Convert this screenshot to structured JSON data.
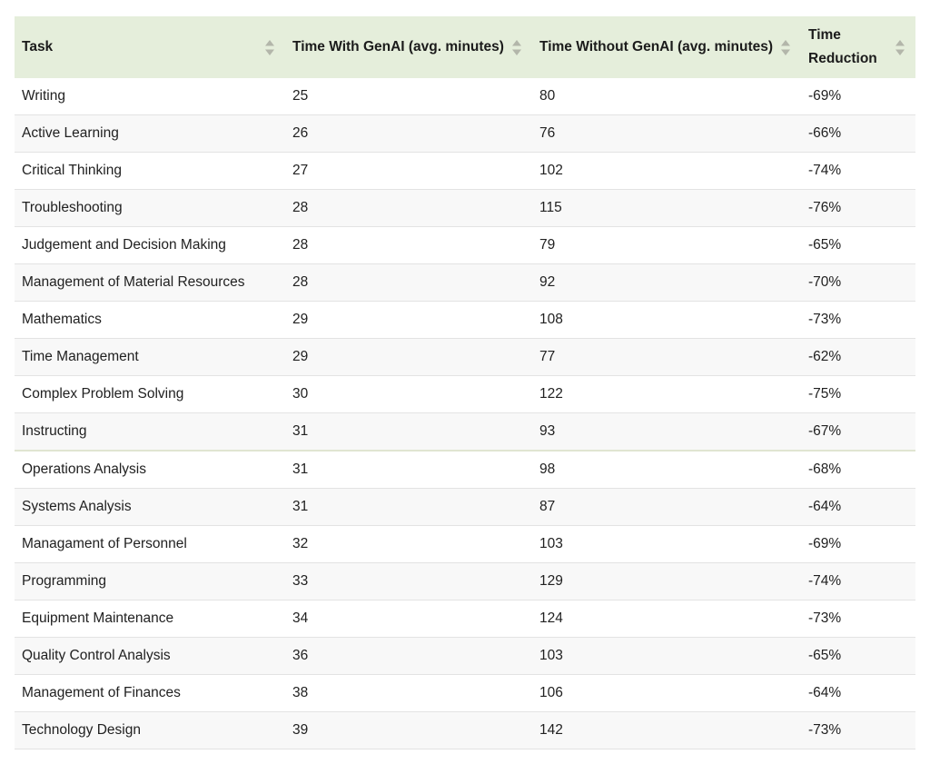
{
  "table": {
    "columns": [
      {
        "label": "Task",
        "sortable": true
      },
      {
        "label": "Time With GenAI (avg. minutes)",
        "sortable": true
      },
      {
        "label": "Time Without GenAI (avg. minutes)",
        "sortable": true
      },
      {
        "label": "Time Reduction",
        "sortable": true
      }
    ],
    "rows": [
      {
        "task": "Writing",
        "with_genai": "25",
        "without_genai": "80",
        "reduction": "-69%"
      },
      {
        "task": "Active Learning",
        "with_genai": "26",
        "without_genai": "76",
        "reduction": "-66%"
      },
      {
        "task": "Critical Thinking",
        "with_genai": "27",
        "without_genai": "102",
        "reduction": "-74%"
      },
      {
        "task": "Troubleshooting",
        "with_genai": "28",
        "without_genai": "115",
        "reduction": "-76%"
      },
      {
        "task": "Judgement and Decision Making",
        "with_genai": "28",
        "without_genai": "79",
        "reduction": "-65%"
      },
      {
        "task": "Management of Material Resources",
        "with_genai": "28",
        "without_genai": "92",
        "reduction": "-70%"
      },
      {
        "task": "Mathematics",
        "with_genai": "29",
        "without_genai": "108",
        "reduction": "-73%"
      },
      {
        "task": "Time Management",
        "with_genai": "29",
        "without_genai": "77",
        "reduction": "-62%"
      },
      {
        "task": "Complex Problem Solving",
        "with_genai": "30",
        "without_genai": "122",
        "reduction": "-75%"
      },
      {
        "task": "Instructing",
        "with_genai": "31",
        "without_genai": "93",
        "reduction": "-67%"
      },
      {
        "task": "Operations Analysis",
        "with_genai": "31",
        "without_genai": "98",
        "reduction": "-68%"
      },
      {
        "task": "Systems Analysis",
        "with_genai": "31",
        "without_genai": "87",
        "reduction": "-64%"
      },
      {
        "task": "Managament of Personnel",
        "with_genai": "32",
        "without_genai": "103",
        "reduction": "-69%"
      },
      {
        "task": "Programming",
        "with_genai": "33",
        "without_genai": "129",
        "reduction": "-74%"
      },
      {
        "task": "Equipment Maintenance",
        "with_genai": "34",
        "without_genai": "124",
        "reduction": "-73%"
      },
      {
        "task": "Quality Control Analysis",
        "with_genai": "36",
        "without_genai": "103",
        "reduction": "-65%"
      },
      {
        "task": "Management of Finances",
        "with_genai": "38",
        "without_genai": "106",
        "reduction": "-64%"
      },
      {
        "task": "Technology Design",
        "with_genai": "39",
        "without_genai": "142",
        "reduction": "-73%"
      }
    ]
  },
  "icons": {
    "sort": "sort-arrows-icon"
  },
  "colors": {
    "header_background": "#e5eedb",
    "header_text": "#1b1b1b",
    "body_text": "#212121",
    "stripe_row": "#f8f8f8",
    "row_border": "#e3e3e3",
    "section_divider": "#e0e5d1",
    "sort_icon": "#b3b6aa"
  }
}
